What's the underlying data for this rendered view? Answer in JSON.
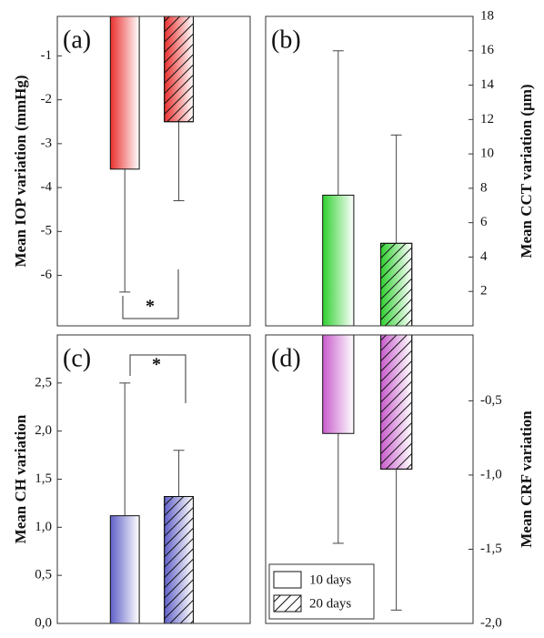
{
  "chart_data": [
    {
      "type": "bar",
      "panel_label": "(a)",
      "y_label": "Mean IOP variation (mmHg)",
      "y_axis_position": "left",
      "color": "#e8302e",
      "values": [
        -3.58,
        -2.5
      ],
      "errors": [
        2.8,
        1.8
      ],
      "ylim": [
        -7.15,
        -0.1
      ],
      "yticks": [
        -6,
        -5,
        -4,
        -3,
        -2,
        -1
      ],
      "annotation": "*"
    },
    {
      "type": "bar",
      "panel_label": "(b)",
      "y_label": "Mean CCT variation (μm)",
      "y_axis_position": "right",
      "color": "#2fd02f",
      "values": [
        7.6,
        4.8
      ],
      "errors": [
        8.4,
        6.3
      ],
      "ylim": [
        0,
        18
      ],
      "yticks": [
        2,
        4,
        6,
        8,
        10,
        12,
        14,
        16,
        18
      ]
    },
    {
      "type": "bar",
      "panel_label": "(c)",
      "y_label": "Mean CH variation",
      "y_axis_position": "left",
      "color": "#6060c8",
      "values": [
        1.12,
        1.32
      ],
      "errors": [
        1.38,
        0.48
      ],
      "ylim": [
        0,
        3.0
      ],
      "yticks": [
        {
          "value": 0,
          "label": "0,0"
        },
        {
          "value": 0.5,
          "label": "0,5"
        },
        {
          "value": 1,
          "label": "1,0"
        },
        {
          "value": 1.5,
          "label": "1,5"
        },
        {
          "value": 2,
          "label": "2,0"
        },
        {
          "value": 2.5,
          "label": "2,5"
        }
      ],
      "annotation": "*"
    },
    {
      "type": "bar",
      "panel_label": "(d)",
      "y_label": "Mean CRF variation",
      "y_axis_position": "right",
      "color": "#c85ccc",
      "values": [
        -0.72,
        -0.96
      ],
      "errors": [
        0.74,
        0.95
      ],
      "ylim": [
        -2.0,
        -0.056
      ],
      "yticks": [
        {
          "value": -2,
          "label": "-2,0"
        },
        {
          "value": -1.5,
          "label": "-1,5"
        },
        {
          "value": -1,
          "label": "-1,0"
        },
        {
          "value": -0.5,
          "label": "-0,5"
        }
      ]
    }
  ],
  "legend": [
    "10 days",
    "20 days"
  ]
}
